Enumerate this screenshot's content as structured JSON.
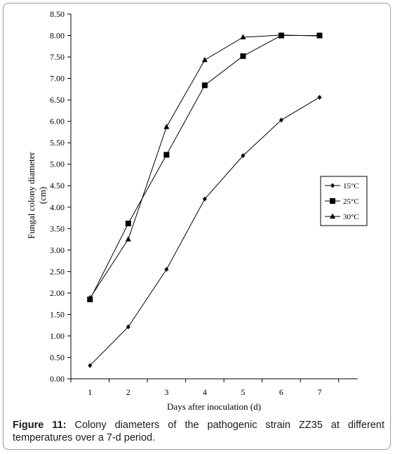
{
  "chart_data": {
    "type": "line",
    "xlabel": "Days after inoculation (d)",
    "ylabel_line1": "Fungal colony diameter",
    "ylabel_line2": "(cm)",
    "x": [
      1,
      2,
      3,
      4,
      5,
      6,
      7
    ],
    "x_ticks": [
      "1",
      "2",
      "3",
      "4",
      "5",
      "6",
      "7"
    ],
    "xlim": [
      0.5,
      8.0
    ],
    "ylim": [
      0,
      8.5
    ],
    "y_ticks": [
      "0.00",
      "0.50",
      "1.00",
      "1.50",
      "2.00",
      "2.50",
      "3.00",
      "3.50",
      "4.00",
      "4.50",
      "5.00",
      "5.50",
      "6.00",
      "6.50",
      "7.00",
      "7.50",
      "8.00",
      "8.50"
    ],
    "grid": false,
    "legend_position": "right",
    "series": [
      {
        "name": "15°C",
        "marker": "diamond",
        "values": [
          0.31,
          1.21,
          2.55,
          4.19,
          5.2,
          6.03,
          6.56
        ]
      },
      {
        "name": "25°C",
        "marker": "square",
        "values": [
          1.85,
          3.62,
          5.22,
          6.84,
          7.52,
          8.0,
          8.0
        ]
      },
      {
        "name": "30°C",
        "marker": "triangle",
        "values": [
          1.88,
          3.25,
          5.87,
          7.43,
          7.96,
          8.01,
          7.99
        ]
      }
    ]
  },
  "caption": {
    "label": "Figure 11:",
    "text": "Colony diameters of the pathogenic strain ZZ35 at different temperatures over a 7-d period."
  },
  "colors": {
    "line": "#000000",
    "axis": "#000000",
    "frame": "#9a9a9a"
  }
}
